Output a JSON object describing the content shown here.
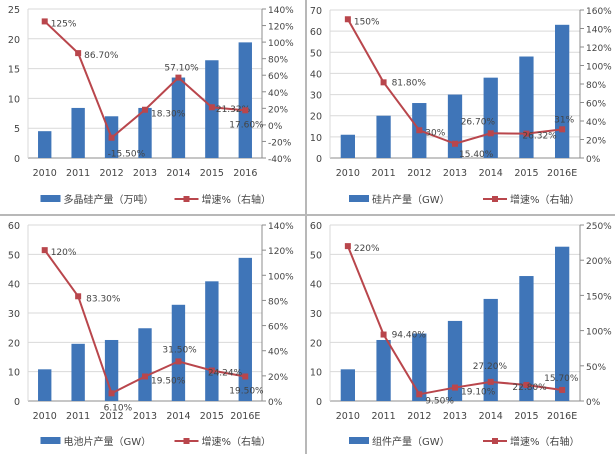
{
  "colors": {
    "bar": "#3f75b8",
    "line": "#b9464c",
    "grid": "#d9d9d9",
    "axis": "#8c8c8c"
  },
  "chart_data": [
    {
      "type": "bar+line",
      "categories": [
        "2010",
        "2011",
        "2012",
        "2013",
        "2014",
        "2015",
        "2016"
      ],
      "series": [
        {
          "name": "多晶硅产量（万吨）",
          "type": "bar",
          "axis": "left",
          "values": [
            4.5,
            8.4,
            7.0,
            8.4,
            13.5,
            16.4,
            19.4
          ]
        },
        {
          "name": "增速%（右轴）",
          "type": "line",
          "axis": "right",
          "values": [
            125,
            86.7,
            -15.5,
            18.3,
            57.1,
            21.32,
            17.6
          ],
          "data_labels": [
            "125%",
            "86.70%",
            "-15.50%",
            "18.30%",
            "57.10%",
            "21.32%",
            "17.60%"
          ]
        }
      ],
      "ylim": [
        0,
        25
      ],
      "yticks": [
        "0",
        "5",
        "10",
        "15",
        "20",
        "25"
      ],
      "y2lim": [
        -40,
        140
      ],
      "y2ticks": [
        "-40%",
        "-20%",
        "0%",
        "20%",
        "40%",
        "60%",
        "80%",
        "100%",
        "120%",
        "140%"
      ],
      "grid": true,
      "legend": "bottom"
    },
    {
      "type": "bar+line",
      "categories": [
        "2010",
        "2011",
        "2012",
        "2013",
        "2014",
        "2015",
        "2016E"
      ],
      "series": [
        {
          "name": "硅片产量（GW）",
          "type": "bar",
          "axis": "left",
          "values": [
            11,
            20,
            26,
            30,
            38,
            48,
            63
          ]
        },
        {
          "name": "增速%（右轴）",
          "type": "line",
          "axis": "right",
          "values": [
            150,
            81.8,
            30,
            15.4,
            26.7,
            26.32,
            31
          ],
          "data_labels": [
            "150%",
            "81.80%",
            "30%",
            "15.40%",
            "26.70%",
            "26.32%",
            "31%"
          ]
        }
      ],
      "ylim": [
        0,
        70
      ],
      "yticks": [
        "0",
        "10",
        "20",
        "30",
        "40",
        "50",
        "60",
        "70"
      ],
      "y2lim": [
        0,
        160
      ],
      "y2ticks": [
        "0%",
        "20%",
        "40%",
        "60%",
        "80%",
        "100%",
        "120%",
        "140%",
        "160%"
      ],
      "grid": true,
      "legend": "bottom"
    },
    {
      "type": "bar+line",
      "categories": [
        "2010",
        "2011",
        "2012",
        "2013",
        "2014",
        "2015",
        "2016E"
      ],
      "series": [
        {
          "name": "电池片产量（GW）",
          "type": "bar",
          "axis": "left",
          "values": [
            10.8,
            19.5,
            20.8,
            24.8,
            32.8,
            40.8,
            48.8
          ]
        },
        {
          "name": "增速%（右轴）",
          "type": "line",
          "axis": "right",
          "values": [
            120,
            83.3,
            6.1,
            19.5,
            31.5,
            24.24,
            19.5
          ],
          "data_labels": [
            "120%",
            "83.30%",
            "6.10%",
            "19.50%",
            "31.50%",
            "24.24%",
            "19.50%"
          ]
        }
      ],
      "ylim": [
        0,
        60
      ],
      "yticks": [
        "0",
        "10",
        "20",
        "30",
        "40",
        "50",
        "60"
      ],
      "y2lim": [
        0,
        140
      ],
      "y2ticks": [
        "0%",
        "20%",
        "40%",
        "60%",
        "80%",
        "100%",
        "120%",
        "140%"
      ],
      "grid": true,
      "legend": "bottom"
    },
    {
      "type": "bar+line",
      "categories": [
        "2010",
        "2011",
        "2012",
        "2013",
        "2014",
        "2015",
        "2016E"
      ],
      "series": [
        {
          "name": "组件产量（GW）",
          "type": "bar",
          "axis": "left",
          "values": [
            10.8,
            20.8,
            23,
            27.3,
            34.8,
            42.6,
            52.6
          ]
        },
        {
          "name": "增速%（右轴）",
          "type": "line",
          "axis": "right",
          "values": [
            220,
            94.4,
            9.5,
            19.1,
            27.2,
            22.8,
            15.7
          ],
          "data_labels": [
            "220%",
            "94.40%",
            "9.50%",
            "19.10%",
            "27.20%",
            "22.80%",
            "15.70%"
          ]
        }
      ],
      "ylim": [
        0,
        60
      ],
      "yticks": [
        "0",
        "10",
        "20",
        "30",
        "40",
        "50",
        "60"
      ],
      "y2lim": [
        0,
        250
      ],
      "y2ticks": [
        "0%",
        "50%",
        "100%",
        "150%",
        "200%",
        "250%"
      ],
      "grid": true,
      "legend": "bottom"
    }
  ]
}
